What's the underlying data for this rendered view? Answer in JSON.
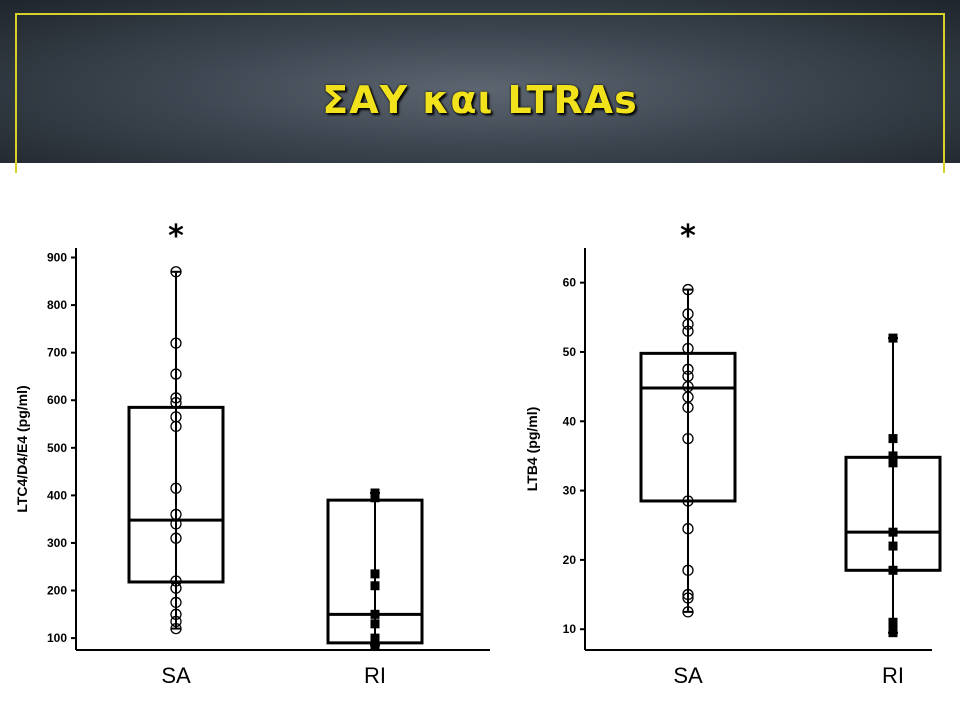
{
  "slide": {
    "title": "ΣΑΥ και LTRAs"
  },
  "chart_data": [
    {
      "type": "box",
      "ylabel": "LTC4/D4/E4 (pg/ml)",
      "ylim": [
        75,
        920
      ],
      "yticks": [
        100,
        200,
        300,
        400,
        500,
        600,
        700,
        800,
        900
      ],
      "categories": [
        "SA",
        "RI"
      ],
      "annotations": [
        "*",
        ""
      ],
      "boxes": [
        {
          "category": "SA",
          "whisker_low": 120,
          "q1": 218,
          "median": 348,
          "q3": 585,
          "whisker_high": 870,
          "points": [
            870,
            720,
            655,
            605,
            595,
            565,
            545,
            415,
            360,
            340,
            310,
            220,
            205,
            175,
            150,
            135,
            120
          ],
          "marker": "open-circle"
        },
        {
          "category": "RI",
          "whisker_low": 85,
          "q1": 90,
          "median": 150,
          "q3": 390,
          "whisker_high": 405,
          "points": [
            405,
            395,
            235,
            210,
            150,
            130,
            100,
            90,
            85
          ],
          "marker": "filled-square"
        }
      ]
    },
    {
      "type": "box",
      "ylabel": "LTB4 (pg/ml)",
      "ylim": [
        7,
        65
      ],
      "yticks": [
        10,
        20,
        30,
        40,
        50,
        60
      ],
      "categories": [
        "SA",
        "RI"
      ],
      "annotations": [
        "*",
        ""
      ],
      "boxes": [
        {
          "category": "SA",
          "whisker_low": 12.5,
          "q1": 28.5,
          "median": 44.8,
          "q3": 49.8,
          "whisker_high": 59,
          "points": [
            59,
            55.5,
            54,
            53,
            50.5,
            47.5,
            46.5,
            45,
            43.5,
            42,
            37.5,
            28.5,
            24.5,
            18.5,
            15,
            14.5,
            12.5
          ],
          "marker": "open-circle"
        },
        {
          "category": "RI",
          "whisker_low": 9.5,
          "q1": 18.5,
          "median": 24,
          "q3": 34.8,
          "whisker_high": 52,
          "points": [
            52,
            37.5,
            35,
            34,
            24,
            22,
            18.5,
            11,
            10,
            9.5
          ],
          "marker": "filled-square"
        }
      ]
    }
  ]
}
